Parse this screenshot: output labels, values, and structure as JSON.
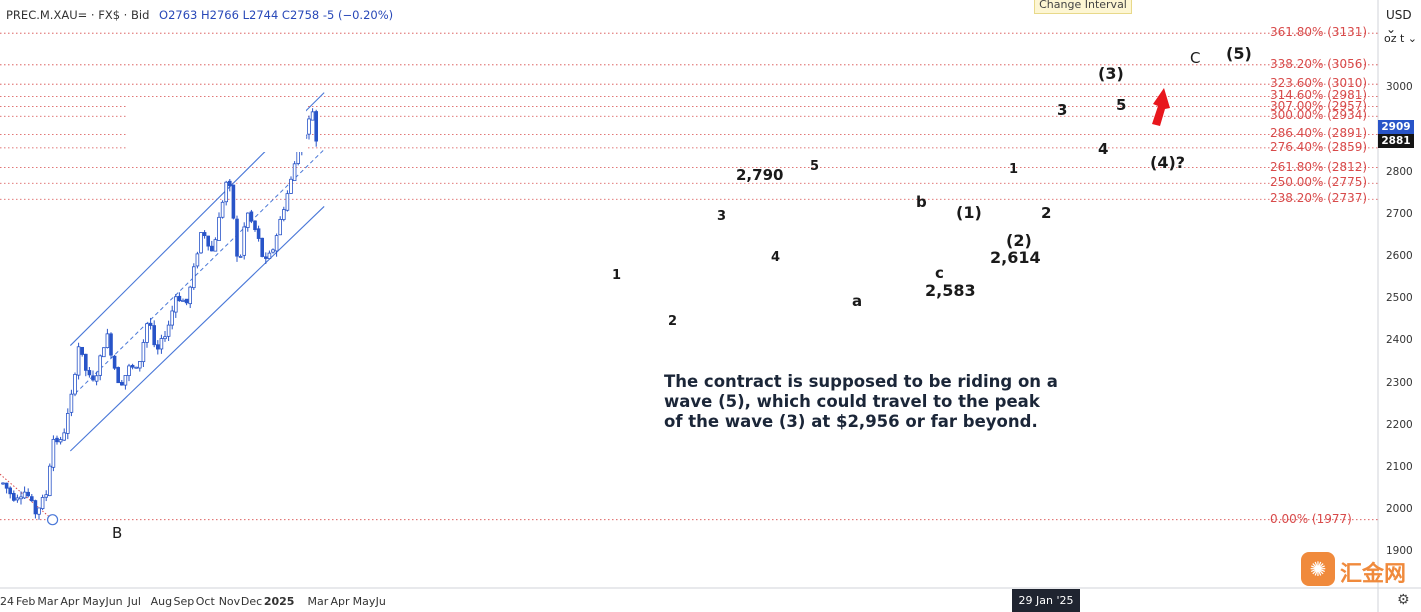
{
  "header": {
    "symbol": "PREC.M.XAU= · FX$ · Bid",
    "ohlc": "O2763  H2766  L2744  C2758  -5 (−0.20%)"
  },
  "tooltip": "Change Interval",
  "currency": "USD ⌄",
  "unit": "oz t ⌄",
  "date_badge": "29 Jan '25",
  "price_badges": [
    "2909",
    "2881"
  ],
  "note": "The contract is supposed to be riding on a wave (5), which could travel to the peak of the wave (3) at $2,956 or far beyond.",
  "logo": {
    "glyph": "✺",
    "text": "汇金网"
  },
  "gear_icon": "⚙",
  "colors": {
    "candle": "#2854c8",
    "channel": "#4a78d8",
    "fib": "#d84a4a",
    "arrow": "#e8161c"
  },
  "chart_data": {
    "type": "candlestick",
    "title": "",
    "xlabel": "",
    "ylabel": "",
    "ylim": [
      1880,
      3180
    ],
    "y_ticks": [
      1900,
      2000,
      2100,
      2200,
      2300,
      2400,
      2500,
      2600,
      2700,
      2800,
      2900,
      3000
    ],
    "x_ticks": [
      "24",
      "Feb",
      "Mar",
      "Apr",
      "May",
      "Jun",
      "Jul",
      "Aug",
      "Sep",
      "Oct",
      "Nov",
      "Dec",
      "2025",
      "Mar",
      "Apr",
      "May",
      "Ju"
    ],
    "x_tick_dates": [
      "2024-01-01",
      "2024-02-01",
      "2024-03-01",
      "2024-04-01",
      "2024-05-01",
      "2024-06-01",
      "2024-07-01",
      "2024-08-01",
      "2024-09-01",
      "2024-10-01",
      "2024-11-01",
      "2024-12-01",
      "2025-01-01",
      "2025-03-01",
      "2025-04-01",
      "2025-05-01",
      "2025-06-01"
    ],
    "series": [
      {
        "values_approx": [
          [
            "2024-01-01",
            2063
          ],
          [
            "2024-01-15",
            2030
          ],
          [
            "2024-02-01",
            2045
          ],
          [
            "2024-02-14",
            1993
          ],
          [
            "2024-02-29",
            2040
          ],
          [
            "2024-03-08",
            2170
          ],
          [
            "2024-03-20",
            2160
          ],
          [
            "2024-04-01",
            2250
          ],
          [
            "2024-04-12",
            2390
          ],
          [
            "2024-04-24",
            2320
          ],
          [
            "2024-05-03",
            2300
          ],
          [
            "2024-05-20",
            2420
          ],
          [
            "2024-06-01",
            2330
          ],
          [
            "2024-06-07",
            2295
          ],
          [
            "2024-06-20",
            2340
          ],
          [
            "2024-07-01",
            2330
          ],
          [
            "2024-07-16",
            2465
          ],
          [
            "2024-07-25",
            2365
          ],
          [
            "2024-08-05",
            2410
          ],
          [
            "2024-08-15",
            2455
          ],
          [
            "2024-08-20",
            2510
          ],
          [
            "2024-09-06",
            2490
          ],
          [
            "2024-09-26",
            2670
          ],
          [
            "2024-10-10",
            2610
          ],
          [
            "2024-10-30",
            2790
          ],
          [
            "2024-11-05",
            2740
          ],
          [
            "2024-11-14",
            2563
          ],
          [
            "2024-11-25",
            2710
          ],
          [
            "2024-12-10",
            2650
          ],
          [
            "2024-12-19",
            2583
          ],
          [
            "2024-12-30",
            2614
          ],
          [
            "2025-01-10",
            2690
          ],
          [
            "2025-01-24",
            2780
          ],
          [
            "2025-02-04",
            2870
          ],
          [
            "2025-02-11",
            2890
          ],
          [
            "2025-02-24",
            2956
          ],
          [
            "2025-02-28",
            2859
          ],
          [
            "2025-03-04",
            2909
          ]
        ]
      }
    ],
    "annotations": {
      "points": {
        "B": "B",
        "a": "a",
        "b": "b",
        "c": "c",
        "C": "C"
      },
      "waves": [
        "1",
        "2",
        "3",
        "4",
        "5",
        "(1)",
        "(2)",
        "(3)",
        "(4)?",
        "(5)"
      ],
      "price_labels": [
        "2,790",
        "2,583",
        "2,614"
      ]
    },
    "fib_levels": [
      {
        "label": "361.80% (3131)",
        "pct": 361.8,
        "price": 3131
      },
      {
        "label": "338.20% (3056)",
        "pct": 338.2,
        "price": 3056
      },
      {
        "label": "323.60% (3010)",
        "pct": 323.6,
        "price": 3010
      },
      {
        "label": "314.60% (2981)",
        "pct": 314.6,
        "price": 2981
      },
      {
        "label": "307.00% (2957)",
        "pct": 307.0,
        "price": 2957
      },
      {
        "label": "300.00% (2934)",
        "pct": 300.0,
        "price": 2934
      },
      {
        "label": "286.40% (2891)",
        "pct": 286.4,
        "price": 2891
      },
      {
        "label": "276.40% (2859)",
        "pct": 276.4,
        "price": 2859
      },
      {
        "label": "261.80% (2812)",
        "pct": 261.8,
        "price": 2812
      },
      {
        "label": "250.00% (2775)",
        "pct": 250.0,
        "price": 2775
      },
      {
        "label": "238.20% (2737)",
        "pct": 238.2,
        "price": 2737
      },
      {
        "label": "0.00% (1977)",
        "pct": 0.0,
        "price": 1977
      }
    ],
    "grid": false
  }
}
